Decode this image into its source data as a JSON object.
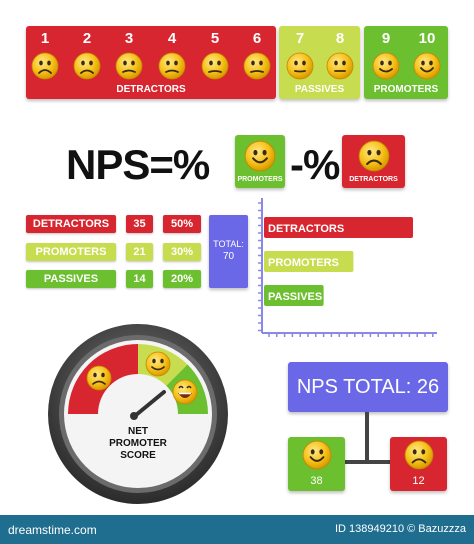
{
  "scale": {
    "numbers": [
      "1",
      "2",
      "3",
      "4",
      "5",
      "6",
      "7",
      "8",
      "9",
      "10"
    ],
    "groups": {
      "detractors": "DETRACTORS",
      "passives": "PASSIVES",
      "promoters": "PROMOTERS"
    }
  },
  "formula": {
    "nps_text": "NPS=%",
    "minus_text": "-%",
    "promoters_label": "PROMOTERS",
    "detractors_label": "DETRACTORS"
  },
  "stats": {
    "rows": [
      {
        "label": "DETRACTORS",
        "count": "35",
        "percent": "50%"
      },
      {
        "label": "PROMOTERS",
        "count": "21",
        "percent": "30%"
      },
      {
        "label": "PASSIVES",
        "count": "14",
        "percent": "20%"
      }
    ],
    "total_label": "TOTAL:",
    "total_value": "70"
  },
  "chart_data": {
    "type": "bar",
    "orientation": "horizontal",
    "categories": [
      "DETRACTORS",
      "PROMOTERS",
      "PASSIVES"
    ],
    "values": [
      35,
      21,
      14
    ],
    "colors": [
      "#d7262f",
      "#c7dc4e",
      "#6cbf2f"
    ],
    "title": "",
    "xlabel": "",
    "ylabel": ""
  },
  "gauge": {
    "line1": "NET",
    "line2": "PROMOTER",
    "line3": "SCORE"
  },
  "tree": {
    "title": "NPS TOTAL: 26",
    "promoters_value": "38",
    "detractors_value": "12"
  },
  "footer": {
    "left": "dreamstime.com",
    "right": "ID 138949210 © Bazuzzza"
  },
  "colors": {
    "red": "#d7262f",
    "lime": "#c7dc4e",
    "green": "#6cbf2f",
    "purple": "#6a68e6",
    "gauge_dark": "#3a3a3a",
    "footer": "#1f6e8f"
  }
}
